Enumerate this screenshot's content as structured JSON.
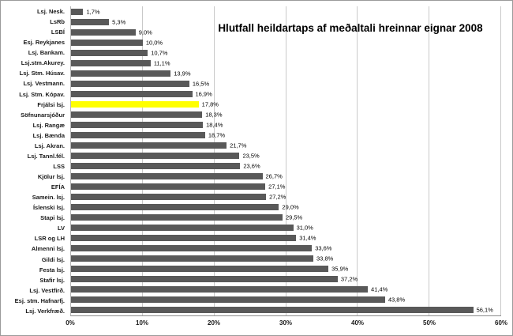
{
  "chart_data": {
    "type": "bar",
    "orientation": "horizontal",
    "title": "Hlutfall heildartaps af meðaltali hreinnar eignar 2008",
    "categories": [
      "Lsj. Nesk.",
      "LsRb",
      "LSBÍ",
      "Esj. Reykjanes",
      "Lsj. Bankam.",
      "Lsj.stm.Akurey.",
      "Lsj. Stm. Húsav.",
      "Lsj. Vestmann.",
      "Lsj. Stm. Kópav.",
      "Frjálsi lsj.",
      "Söfnunarsjóður",
      "Lsj. Rangæ",
      "Lsj. Bænda",
      "Lsj. Akran.",
      "Lsj. Tannl.fél.",
      "LSS",
      "Kjölur lsj.",
      "EFÍA",
      "Samein. lsj.",
      "Íslenski lsj.",
      "Stapi lsj.",
      "LV",
      "LSR og LH",
      "Almenni lsj.",
      "Gildi lsj.",
      "Festa lsj.",
      "Stafir lsj.",
      "Lsj. Vestfirð.",
      "Esj. stm. Hafnarfj.",
      "Lsj. Verkfræð."
    ],
    "values": [
      1.7,
      5.3,
      9.0,
      10.0,
      10.7,
      11.1,
      13.9,
      16.5,
      16.9,
      17.8,
      18.3,
      18.4,
      18.7,
      21.7,
      23.5,
      23.6,
      26.7,
      27.1,
      27.2,
      29.0,
      29.5,
      31.0,
      31.4,
      33.6,
      33.8,
      35.9,
      37.2,
      41.4,
      43.8,
      56.1
    ],
    "value_labels": [
      "1,7%",
      "5,3%",
      "9,0%",
      "10,0%",
      "10,7%",
      "11,1%",
      "13,9%",
      "16,5%",
      "16,9%",
      "17,8%",
      "18,3%",
      "18,4%",
      "18,7%",
      "21,7%",
      "23,5%",
      "23,6%",
      "26,7%",
      "27,1%",
      "27,2%",
      "29,0%",
      "29,5%",
      "31,0%",
      "31,4%",
      "33,6%",
      "33,8%",
      "35,9%",
      "37,2%",
      "41,4%",
      "43,8%",
      "56,1%"
    ],
    "highlight_index": 9,
    "bar_color": "#595959",
    "highlight_color": "#ffff00",
    "xlim": [
      0,
      60
    ],
    "xticks": [
      "0%",
      "10%",
      "20%",
      "30%",
      "40%",
      "50%",
      "60%"
    ],
    "grid": true,
    "legend": "none"
  }
}
